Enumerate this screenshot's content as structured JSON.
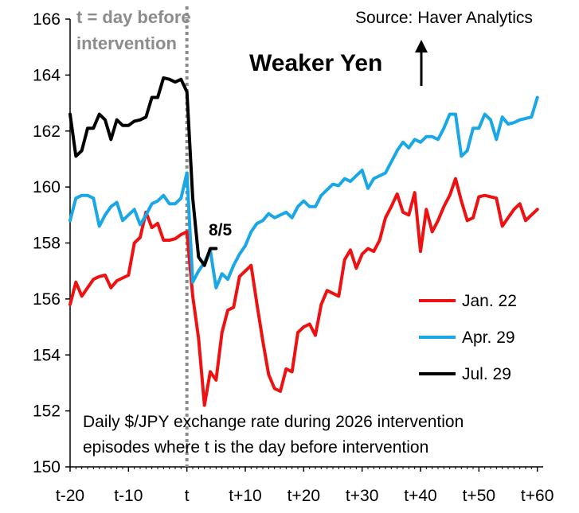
{
  "chart_data": {
    "type": "line",
    "source": "Source: Haver Analytics",
    "xlabel": "",
    "ylabel": "",
    "ylim": [
      150,
      166
    ],
    "xlim": [
      -20,
      61
    ],
    "y_ticks": [
      "150",
      "152",
      "154",
      "156",
      "158",
      "160",
      "162",
      "164",
      "166"
    ],
    "x_ticks": [
      {
        "x": -20,
        "label": "t-20"
      },
      {
        "x": -10,
        "label": "t-10"
      },
      {
        "x": 0,
        "label": "t"
      },
      {
        "x": 10,
        "label": "t+10"
      },
      {
        "x": 20,
        "label": "t+20"
      },
      {
        "x": 30,
        "label": "t+30"
      },
      {
        "x": 40,
        "label": "t+40"
      },
      {
        "x": 50,
        "label": "t+50"
      },
      {
        "x": 60,
        "label": "t+60"
      }
    ],
    "annotations": {
      "t_note_line1": "t = day before",
      "t_note_line2": "intervention",
      "weaker_yen": "Weaker Yen",
      "last_point": "8/5",
      "note_line1": "Daily $/JPY exchange rate during 2026 intervention",
      "note_line2": "episodes where t is the day before intervention"
    },
    "legend_position": "bottom-right",
    "series": [
      {
        "name": "Jan. 22",
        "color": "#ee1111",
        "x": [
          -20,
          -19,
          -18,
          -17,
          -16,
          -15,
          -14,
          -13,
          -12,
          -11,
          -10,
          -9,
          -8,
          -7,
          -6,
          -5,
          -4,
          -3,
          -2,
          -1,
          0,
          1,
          2,
          3,
          4,
          5,
          6,
          7,
          8,
          9,
          10,
          11,
          12,
          13,
          14,
          15,
          16,
          17,
          18,
          19,
          20,
          21,
          22,
          23,
          24,
          25,
          26,
          27,
          28,
          29,
          30,
          31,
          32,
          33,
          34,
          35,
          36,
          37,
          38,
          39,
          40,
          41,
          42,
          43,
          44,
          45,
          46,
          47,
          48,
          49,
          50,
          51,
          52,
          53,
          54,
          55,
          56,
          57,
          58,
          59,
          60
        ],
        "values": [
          155.8,
          156.6,
          156.1,
          156.4,
          156.7,
          156.8,
          156.85,
          156.4,
          156.65,
          156.75,
          156.85,
          158.0,
          158.2,
          159.1,
          158.55,
          158.7,
          158.1,
          158.1,
          158.15,
          158.3,
          158.4,
          156.1,
          154.6,
          152.2,
          153.4,
          153.1,
          154.8,
          155.6,
          155.7,
          156.8,
          157.0,
          157.2,
          155.8,
          154.5,
          153.3,
          152.8,
          152.7,
          153.5,
          153.4,
          154.8,
          155.0,
          155.1,
          154.7,
          155.8,
          156.3,
          156.2,
          156.1,
          157.4,
          157.75,
          157.1,
          157.6,
          157.8,
          157.7,
          158.1,
          158.9,
          159.3,
          159.75,
          159.1,
          159.0,
          159.8,
          157.7,
          159.2,
          158.4,
          158.8,
          159.3,
          159.7,
          160.3,
          159.5,
          158.8,
          158.9,
          159.65,
          159.7,
          159.65,
          159.6,
          158.6,
          158.9,
          159.2,
          159.4,
          158.8,
          159.0,
          159.2
        ]
      },
      {
        "name": "Apr. 29",
        "color": "#1aa7e6",
        "x": [
          -20,
          -19,
          -18,
          -17,
          -16,
          -15,
          -14,
          -13,
          -12,
          -11,
          -10,
          -9,
          -8,
          -7,
          -6,
          -5,
          -4,
          -3,
          -2,
          -1,
          0,
          1,
          2,
          3,
          4,
          5,
          6,
          7,
          8,
          9,
          10,
          11,
          12,
          13,
          14,
          15,
          16,
          17,
          18,
          19,
          20,
          21,
          22,
          23,
          24,
          25,
          26,
          27,
          28,
          29,
          30,
          31,
          32,
          33,
          34,
          35,
          36,
          37,
          38,
          39,
          40,
          41,
          42,
          43,
          44,
          45,
          46,
          47,
          48,
          49,
          50,
          51,
          52,
          53,
          54,
          55,
          56,
          57,
          58,
          59,
          60
        ],
        "values": [
          158.8,
          159.6,
          159.7,
          159.7,
          159.6,
          158.6,
          159.0,
          159.3,
          159.45,
          158.8,
          159.0,
          159.2,
          158.65,
          159.0,
          159.4,
          159.5,
          159.7,
          159.4,
          159.4,
          159.6,
          160.5,
          156.6,
          157.0,
          157.3,
          157.75,
          156.4,
          156.9,
          156.7,
          157.2,
          157.6,
          157.9,
          158.4,
          158.7,
          158.8,
          159.05,
          158.9,
          159.0,
          159.1,
          158.9,
          159.3,
          159.5,
          159.3,
          159.3,
          159.7,
          159.9,
          160.1,
          160.05,
          160.3,
          160.2,
          160.4,
          160.6,
          159.95,
          160.3,
          160.4,
          160.5,
          160.9,
          161.3,
          161.6,
          161.4,
          161.7,
          161.6,
          161.8,
          161.8,
          161.7,
          162.1,
          162.6,
          162.6,
          161.1,
          161.3,
          162.1,
          162.1,
          162.6,
          162.4,
          161.7,
          162.5,
          162.25,
          162.3,
          162.4,
          162.45,
          162.5,
          163.2
        ]
      },
      {
        "name": "Jul. 29",
        "color": "#000000",
        "x": [
          -20,
          -19,
          -18,
          -17,
          -16,
          -15,
          -14,
          -13,
          -12,
          -11,
          -10,
          -9,
          -8,
          -7,
          -6,
          -5,
          -4,
          -3,
          -2,
          -1,
          0,
          1,
          2,
          3,
          4,
          5
        ],
        "values": [
          162.6,
          161.1,
          161.3,
          162.1,
          162.1,
          162.6,
          162.4,
          161.7,
          162.4,
          162.2,
          162.2,
          162.35,
          162.4,
          162.5,
          163.2,
          163.2,
          163.9,
          163.85,
          163.75,
          163.85,
          163.4,
          159.6,
          157.5,
          157.2,
          157.8,
          157.8
        ]
      }
    ]
  }
}
